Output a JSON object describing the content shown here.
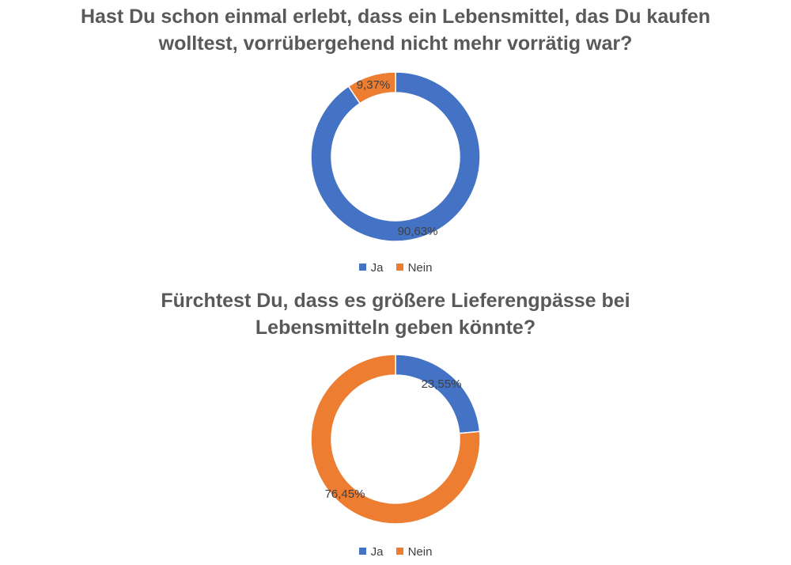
{
  "colors": {
    "ja": "#4472C4",
    "nein": "#ED7D31",
    "title": "#595959",
    "label": "#404040"
  },
  "chart_data": [
    {
      "type": "pie",
      "variant": "donut",
      "title_lines": [
        "Hast Du schon einmal erlebt, dass ein Lebensmittel, das Du kaufen",
        "wolltest, vorrübergehend nicht mehr vorrätig war?"
      ],
      "categories": [
        "Ja",
        "Nein"
      ],
      "values": [
        90.63,
        9.37
      ],
      "data_labels": [
        "90,63%",
        "9,37%"
      ],
      "legend": {
        "position": "bottom",
        "entries": [
          "Ja",
          "Nein"
        ]
      }
    },
    {
      "type": "pie",
      "variant": "donut",
      "title_lines": [
        "Fürchtest Du, dass es größere Lieferengpässe bei",
        "Lebensmitteln geben könnte?"
      ],
      "categories": [
        "Ja",
        "Nein"
      ],
      "values": [
        23.55,
        76.45
      ],
      "data_labels": [
        "23,55%",
        "76,45%"
      ],
      "legend": {
        "position": "bottom",
        "entries": [
          "Ja",
          "Nein"
        ]
      }
    }
  ]
}
